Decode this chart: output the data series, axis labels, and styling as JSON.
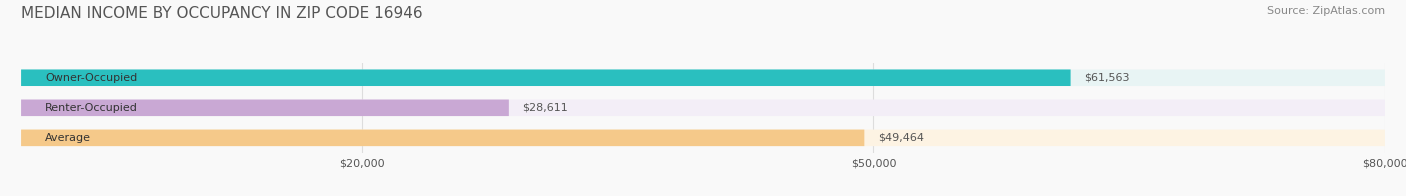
{
  "title": "MEDIAN INCOME BY OCCUPANCY IN ZIP CODE 16946",
  "source": "Source: ZipAtlas.com",
  "categories": [
    "Owner-Occupied",
    "Renter-Occupied",
    "Average"
  ],
  "values": [
    61563,
    28611,
    49464
  ],
  "labels": [
    "$61,563",
    "$28,611",
    "$49,464"
  ],
  "bar_colors": [
    "#2abfbf",
    "#c9a8d4",
    "#f5c98a"
  ],
  "bar_bg_colors": [
    "#e8f4f4",
    "#f3eef7",
    "#fdf3e3"
  ],
  "xlim": [
    0,
    80000
  ],
  "xticks": [
    20000,
    50000,
    80000
  ],
  "xticklabels": [
    "$20,000",
    "$50,000",
    "$80,000"
  ],
  "title_fontsize": 11,
  "source_fontsize": 8,
  "label_fontsize": 8,
  "bar_label_fontsize": 8,
  "bar_height": 0.55,
  "bg_color": "#f9f9f9",
  "grid_color": "#dddddd"
}
